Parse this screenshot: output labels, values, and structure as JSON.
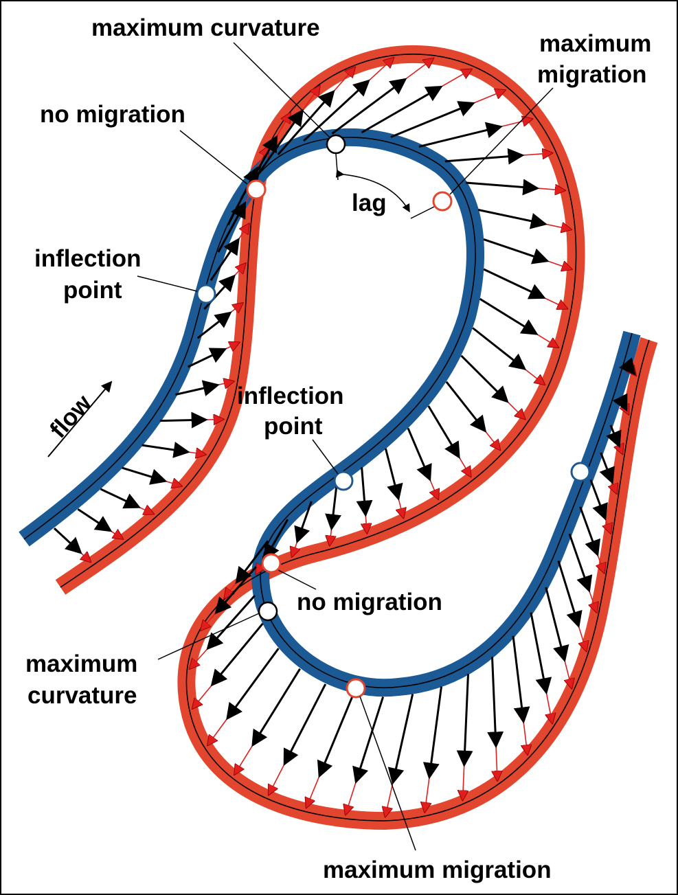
{
  "labels": {
    "max_curvature_top": "maximum curvature",
    "max_migration_top_line1": "maximum",
    "max_migration_top_line2": "migration",
    "no_migration_top": "no migration",
    "lag": "lag",
    "inflection_top_line1": "inflection",
    "inflection_top_line2": "point",
    "flow": "flow",
    "inflection_mid_line1": "inflection",
    "inflection_mid_line2": "point",
    "no_migration_bottom": "no migration",
    "max_curvature_bottom_line1": "maximum",
    "max_curvature_bottom_line2": "curvature",
    "max_migration_bottom": "maximum migration"
  },
  "colors": {
    "old_channel": "#1b5a94",
    "new_channel": "#e2462f",
    "new_vector": "#e01e1e",
    "old_vector": "#000000",
    "marker_white": "#ffffff"
  },
  "markers": [
    {
      "name": "max-curvature-top-marker",
      "type": "white"
    },
    {
      "name": "no-migration-top-marker",
      "type": "red"
    },
    {
      "name": "max-migration-top-marker",
      "type": "red"
    },
    {
      "name": "inflection-top-marker",
      "type": "blue"
    },
    {
      "name": "inflection-mid-marker",
      "type": "blue"
    },
    {
      "name": "inflection-right-marker",
      "type": "blue"
    },
    {
      "name": "no-migration-bottom-marker",
      "type": "red"
    },
    {
      "name": "max-curvature-bottom-marker",
      "type": "white"
    },
    {
      "name": "max-migration-bottom-marker",
      "type": "red"
    }
  ]
}
